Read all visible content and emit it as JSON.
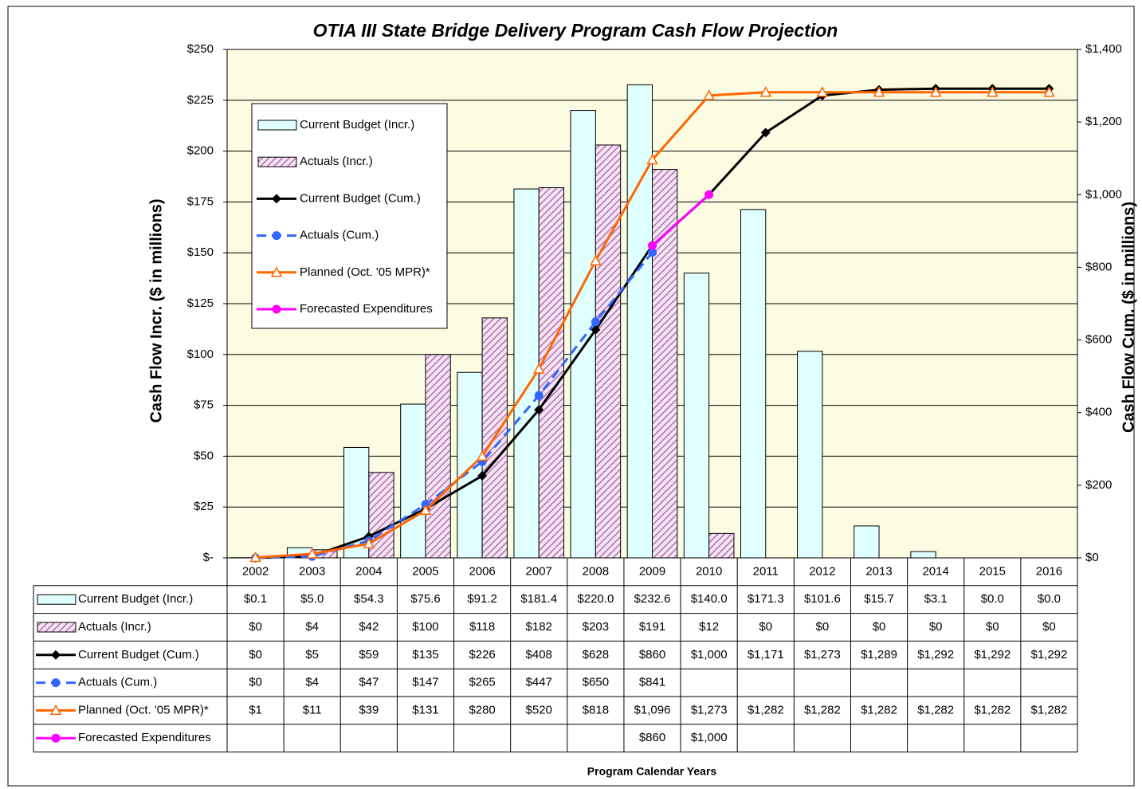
{
  "chart_data": {
    "type": "bar",
    "title": "OTIA III State Bridge Delivery Program Cash Flow Projection",
    "x_label": "Program Calendar Years",
    "y_label": "Cash Flow Incr. ($ in millions)",
    "y2_label": "Cash Flow Cum. ($ in millions)",
    "categories": [
      "2002",
      "2003",
      "2004",
      "2005",
      "2006",
      "2007",
      "2008",
      "2009",
      "2010",
      "2011",
      "2012",
      "2013",
      "2014",
      "2015",
      "2016"
    ],
    "ylim": [
      0,
      250
    ],
    "yticks": [
      {
        "value": 0,
        "label": "$-"
      },
      {
        "value": 25,
        "label": "$25"
      },
      {
        "value": 50,
        "label": "$50"
      },
      {
        "value": 75,
        "label": "$75"
      },
      {
        "value": 100,
        "label": "$100"
      },
      {
        "value": 125,
        "label": "$125"
      },
      {
        "value": 150,
        "label": "$150"
      },
      {
        "value": 175,
        "label": "$175"
      },
      {
        "value": 200,
        "label": "$200"
      },
      {
        "value": 225,
        "label": "$225"
      },
      {
        "value": 250,
        "label": "$250"
      }
    ],
    "y2lim": [
      0,
      1400
    ],
    "y2ticks": [
      {
        "value": 0,
        "label": "$0"
      },
      {
        "value": 200,
        "label": "$200"
      },
      {
        "value": 400,
        "label": "$400"
      },
      {
        "value": 600,
        "label": "$600"
      },
      {
        "value": 800,
        "label": "$800"
      },
      {
        "value": 1000,
        "label": "$1,000"
      },
      {
        "value": 1200,
        "label": "$1,200"
      },
      {
        "value": 1400,
        "label": "$1,400"
      }
    ],
    "grid": true,
    "legend": "upper left",
    "series": [
      {
        "name": "Current Budget (Incr.)",
        "type": "bar",
        "color": "#e0ffff",
        "values": [
          0.1,
          5.0,
          54.3,
          75.6,
          91.2,
          181.4,
          220.0,
          232.6,
          140.0,
          171.3,
          101.6,
          15.7,
          3.1,
          0.0,
          0.0
        ],
        "value_labels": [
          "$0.1",
          "$5.0",
          "$54.3",
          "$75.6",
          "$91.2",
          "$181.4",
          "$220.0",
          "$232.6",
          "$140.0",
          "$171.3",
          "$101.6",
          "$15.7",
          "$3.1",
          "$0.0",
          "$0.0"
        ]
      },
      {
        "name": "Actuals (Incr.)",
        "type": "bar",
        "color": "#b070b0",
        "values": [
          0,
          4,
          42,
          100,
          118,
          182,
          203,
          191,
          12,
          0,
          0,
          0,
          0,
          0,
          0
        ],
        "value_labels": [
          "$0",
          "$4",
          "$42",
          "$100",
          "$118",
          "$182",
          "$203",
          "$191",
          "$12",
          "$0",
          "$0",
          "$0",
          "$0",
          "$0",
          "$0"
        ]
      },
      {
        "name": "Current Budget (Cum.)",
        "type": "line",
        "axis": "y2",
        "color": "#000000",
        "marker": "diamond",
        "values": [
          0,
          5,
          59,
          135,
          226,
          408,
          628,
          860,
          1000,
          1171,
          1273,
          1289,
          1292,
          1292,
          1292
        ],
        "value_labels": [
          "$0",
          "$5",
          "$59",
          "$135",
          "$226",
          "$408",
          "$628",
          "$860",
          "$1,000",
          "$1,171",
          "$1,273",
          "$1,289",
          "$1,292",
          "$1,292",
          "$1,292"
        ]
      },
      {
        "name": "Actuals (Cum.)",
        "type": "line",
        "axis": "y2",
        "color": "#3366ff",
        "marker": "circle",
        "dashed": true,
        "values": [
          0,
          4,
          47,
          147,
          265,
          447,
          650,
          841,
          null,
          null,
          null,
          null,
          null,
          null,
          null
        ],
        "value_labels": [
          "$0",
          "$4",
          "$47",
          "$147",
          "$265",
          "$447",
          "$650",
          "$841",
          null,
          null,
          null,
          null,
          null,
          null,
          null
        ]
      },
      {
        "name": "Planned (Oct. '05 MPR)*",
        "type": "line",
        "axis": "y2",
        "color": "#ff6600",
        "marker": "triangle",
        "values": [
          1,
          11,
          39,
          131,
          280,
          520,
          818,
          1096,
          1273,
          1282,
          1282,
          1282,
          1282,
          1282,
          1282
        ],
        "value_labels": [
          "$1",
          "$11",
          "$39",
          "$131",
          "$280",
          "$520",
          "$818",
          "$1,096",
          "$1,273",
          "$1,282",
          "$1,282",
          "$1,282",
          "$1,282",
          "$1,282",
          "$1,282"
        ]
      },
      {
        "name": "Forecasted Expenditures",
        "type": "line",
        "axis": "y2",
        "color": "#ff00ff",
        "marker": "circle",
        "values": [
          null,
          null,
          null,
          null,
          null,
          null,
          null,
          860,
          1000,
          null,
          null,
          null,
          null,
          null,
          null
        ],
        "value_labels": [
          null,
          null,
          null,
          null,
          null,
          null,
          null,
          "$860",
          "$1,000",
          null,
          null,
          null,
          null,
          null,
          null
        ]
      }
    ]
  }
}
